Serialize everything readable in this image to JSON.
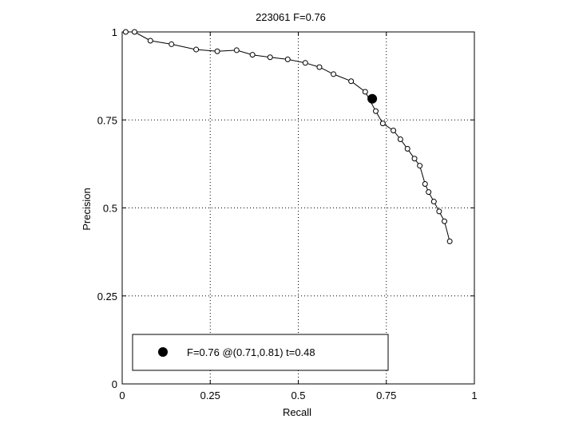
{
  "chart_data": {
    "type": "line",
    "title": "223061 F=0.76",
    "xlabel": "Recall",
    "ylabel": "Precision",
    "xlim": [
      0,
      1
    ],
    "ylim": [
      0,
      1
    ],
    "xticks": [
      0,
      0.25,
      0.5,
      0.75,
      1
    ],
    "xtick_labels": [
      "0",
      "0.25",
      "0.5",
      "0.75",
      "1"
    ],
    "yticks": [
      0,
      0.25,
      0.5,
      0.75,
      1
    ],
    "ytick_labels": [
      "0",
      "0.25",
      "0.5",
      "0.75",
      "1"
    ],
    "grid": true,
    "legend_position": "bottom-left",
    "series": [
      {
        "marker": "open-circle",
        "x": [
          0.01,
          0.035,
          0.08,
          0.14,
          0.21,
          0.27,
          0.325,
          0.37,
          0.42,
          0.47,
          0.52,
          0.56,
          0.6,
          0.65,
          0.69,
          0.72,
          0.74,
          0.77,
          0.79,
          0.81,
          0.83,
          0.845,
          0.86,
          0.87,
          0.885,
          0.9,
          0.915,
          0.93
        ],
        "y": [
          1.0,
          1.0,
          0.975,
          0.965,
          0.95,
          0.945,
          0.948,
          0.935,
          0.928,
          0.922,
          0.912,
          0.9,
          0.88,
          0.86,
          0.83,
          0.775,
          0.74,
          0.72,
          0.695,
          0.668,
          0.64,
          0.62,
          0.568,
          0.545,
          0.518,
          0.49,
          0.462,
          0.405
        ]
      }
    ],
    "highlight_point": {
      "x": 0.71,
      "y": 0.81,
      "marker": "filled-circle",
      "label": "F=0.76 @(0.71,0.81) t=0.48"
    }
  }
}
